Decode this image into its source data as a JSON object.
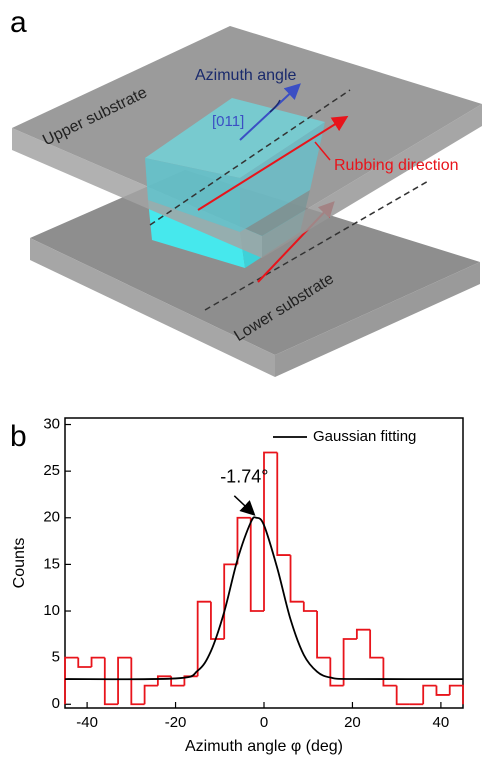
{
  "diagram": {
    "panel_label": "a",
    "upper_substrate": "Upper substrate",
    "azimuth_angle": "Azimuth angle",
    "direction": "[011]",
    "rubbing_direction": "Rubbing direction",
    "lower_substrate": "Lower substrate"
  },
  "chart_data": {
    "type": "histogram",
    "panel_label": "b",
    "bins": [
      -45,
      -42,
      -39,
      -36,
      -33,
      -30,
      -27,
      -24,
      -21,
      -18,
      -15,
      -12,
      -9,
      -6,
      -3,
      0,
      3,
      6,
      9,
      12,
      15,
      18,
      21,
      24,
      27,
      30,
      33,
      36,
      39,
      42,
      45
    ],
    "values": [
      5,
      4,
      5,
      0,
      5,
      0,
      2,
      3,
      2,
      3,
      11,
      7,
      15,
      20,
      10,
      27,
      16,
      11,
      10,
      5,
      2,
      7,
      8,
      5,
      2,
      0,
      0,
      2,
      1,
      2
    ],
    "color": "#e8141b",
    "fit": {
      "name": "Gaussian fitting",
      "color": "#000000",
      "x": [
        -45,
        -20,
        -15,
        -12,
        -9,
        -6,
        -3,
        -1.74,
        0,
        3,
        6,
        9,
        12,
        15,
        20,
        45
      ],
      "values": [
        2.7,
        2.77,
        3.6,
        5.7,
        9.9,
        15.5,
        19.5,
        20,
        19.2,
        14.6,
        9.1,
        5.3,
        3.5,
        2.87,
        2.71,
        2.7
      ]
    },
    "annotation": "-1.74°",
    "legend": "upper right",
    "xlim": [
      -45,
      45
    ],
    "ylim": [
      -0.4,
      30.7
    ],
    "xticks": [
      -40,
      -20,
      0,
      20,
      40
    ],
    "yticks": [
      0,
      5,
      10,
      15,
      20,
      25,
      30
    ],
    "x_label": "Azimuth angle φ (deg)",
    "y_label": "Counts"
  }
}
